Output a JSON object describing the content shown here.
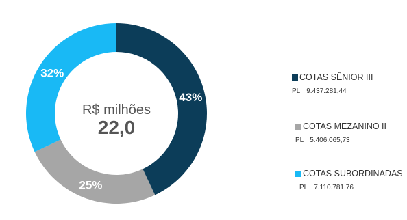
{
  "chart_data": {
    "type": "pie",
    "center_label": "R$ milhões",
    "center_value": "22,0",
    "categories": [
      "COTAS SÊNIOR III",
      "COTAS MEZANINO II",
      "COTAS SUBORDINADAS"
    ],
    "values": [
      43,
      25,
      32
    ],
    "data_labels": [
      "43%",
      "25%",
      "32%"
    ],
    "colors": [
      "#0c3d59",
      "#a6a6a6",
      "#19b9f5"
    ],
    "legend_position": "right",
    "legend": [
      {
        "name": "COTAS SÊNIOR III",
        "pl_label": "PL",
        "pl_value": "9.437.281,44"
      },
      {
        "name": "COTAS MEZANINO II",
        "pl_label": "PL",
        "pl_value": "5.406.065,73"
      },
      {
        "name": "COTAS SUBORDINADAS",
        "pl_label": "PL",
        "pl_value": "7.110.781,76"
      }
    ]
  }
}
